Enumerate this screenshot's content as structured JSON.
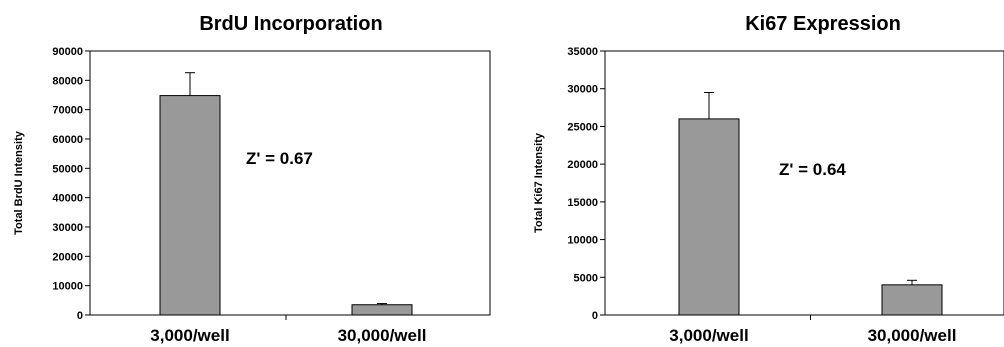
{
  "chart_data": [
    {
      "type": "bar",
      "title": "BrdU Incorporation",
      "ylabel": "Total BrdU Intensity",
      "xlabel": "",
      "categories": [
        "3,000/well",
        "30,000/well"
      ],
      "values": [
        74800,
        3500
      ],
      "error": [
        7800,
        400
      ],
      "ylim": [
        0,
        90000
      ],
      "yticks": [
        "0",
        "10000",
        "20000",
        "30000",
        "40000",
        "50000",
        "60000",
        "70000",
        "80000",
        "90000"
      ],
      "annotation": "Z' = 0.67",
      "bar_color": "#999999",
      "grid": false
    },
    {
      "type": "bar",
      "title": "Ki67 Expression",
      "ylabel": "Total Ki67 Intensity",
      "xlabel": "",
      "categories": [
        "3,000/well",
        "30,000/well"
      ],
      "values": [
        26000,
        4000
      ],
      "error": [
        3500,
        600
      ],
      "ylim": [
        0,
        35000
      ],
      "yticks": [
        "0",
        "5000",
        "10000",
        "15000",
        "20000",
        "25000",
        "30000",
        "35000"
      ],
      "annotation": "Z' = 0.64",
      "bar_color": "#999999",
      "grid": false
    }
  ]
}
